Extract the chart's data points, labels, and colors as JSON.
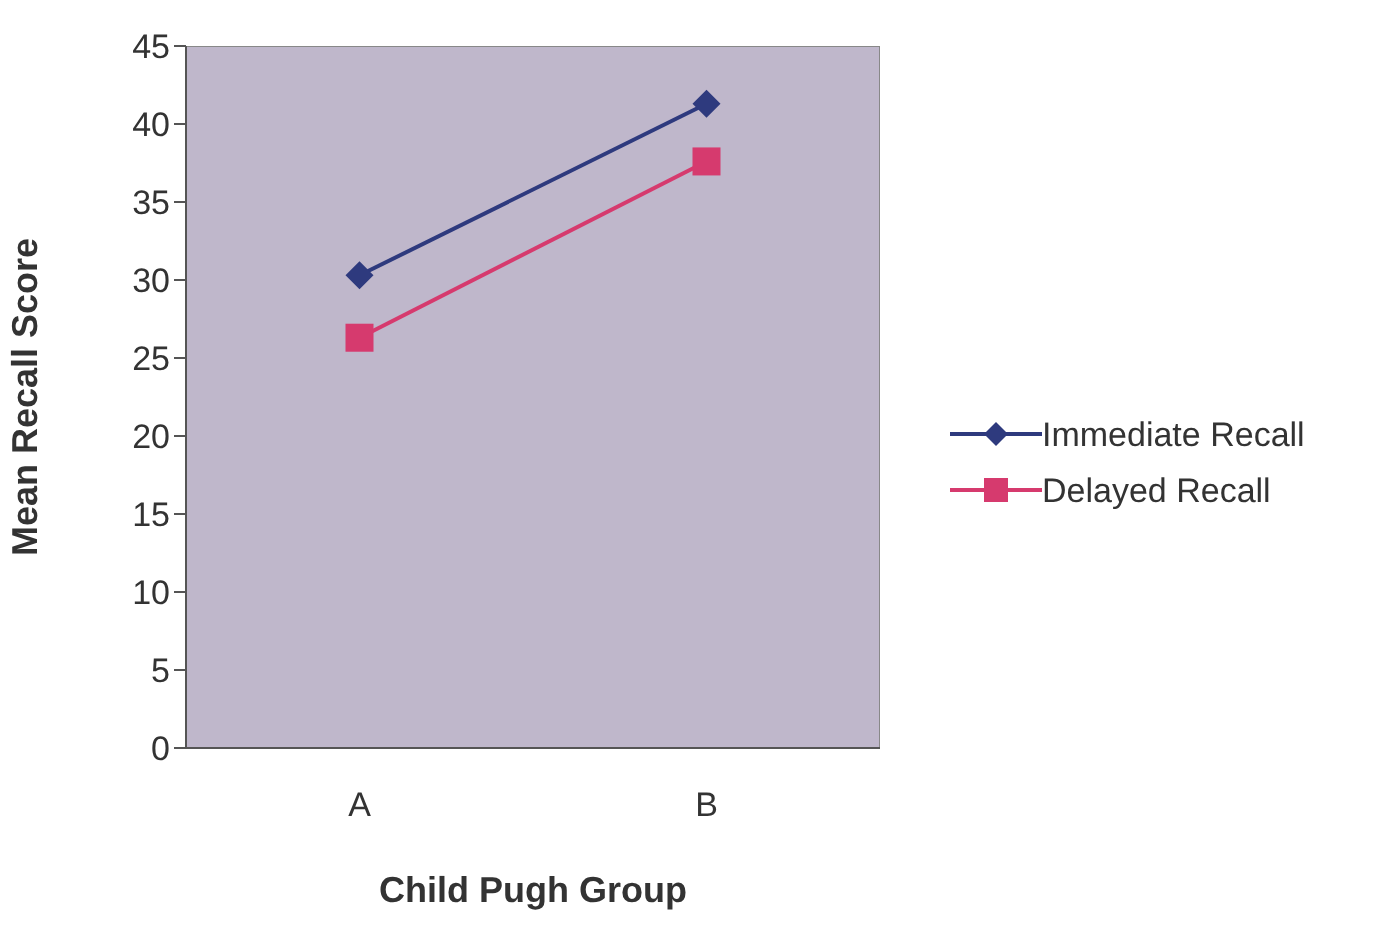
{
  "chart_data": {
    "type": "line",
    "xlabel": "Child Pugh Group",
    "ylabel": "Mean Recall Score",
    "categories": [
      "A",
      "B"
    ],
    "series": [
      {
        "name": "Immediate Recall",
        "color": "#2e3a7e",
        "values": [
          30.3,
          41.3
        ],
        "marker": "diamond"
      },
      {
        "name": "Delayed Recall",
        "color": "#d63a6e",
        "values": [
          26.3,
          37.6
        ],
        "marker": "square"
      }
    ],
    "ylim": [
      0,
      45
    ],
    "yticks": [
      0,
      5,
      10,
      15,
      20,
      25,
      30,
      35,
      40,
      45
    ],
    "legend": "right"
  }
}
